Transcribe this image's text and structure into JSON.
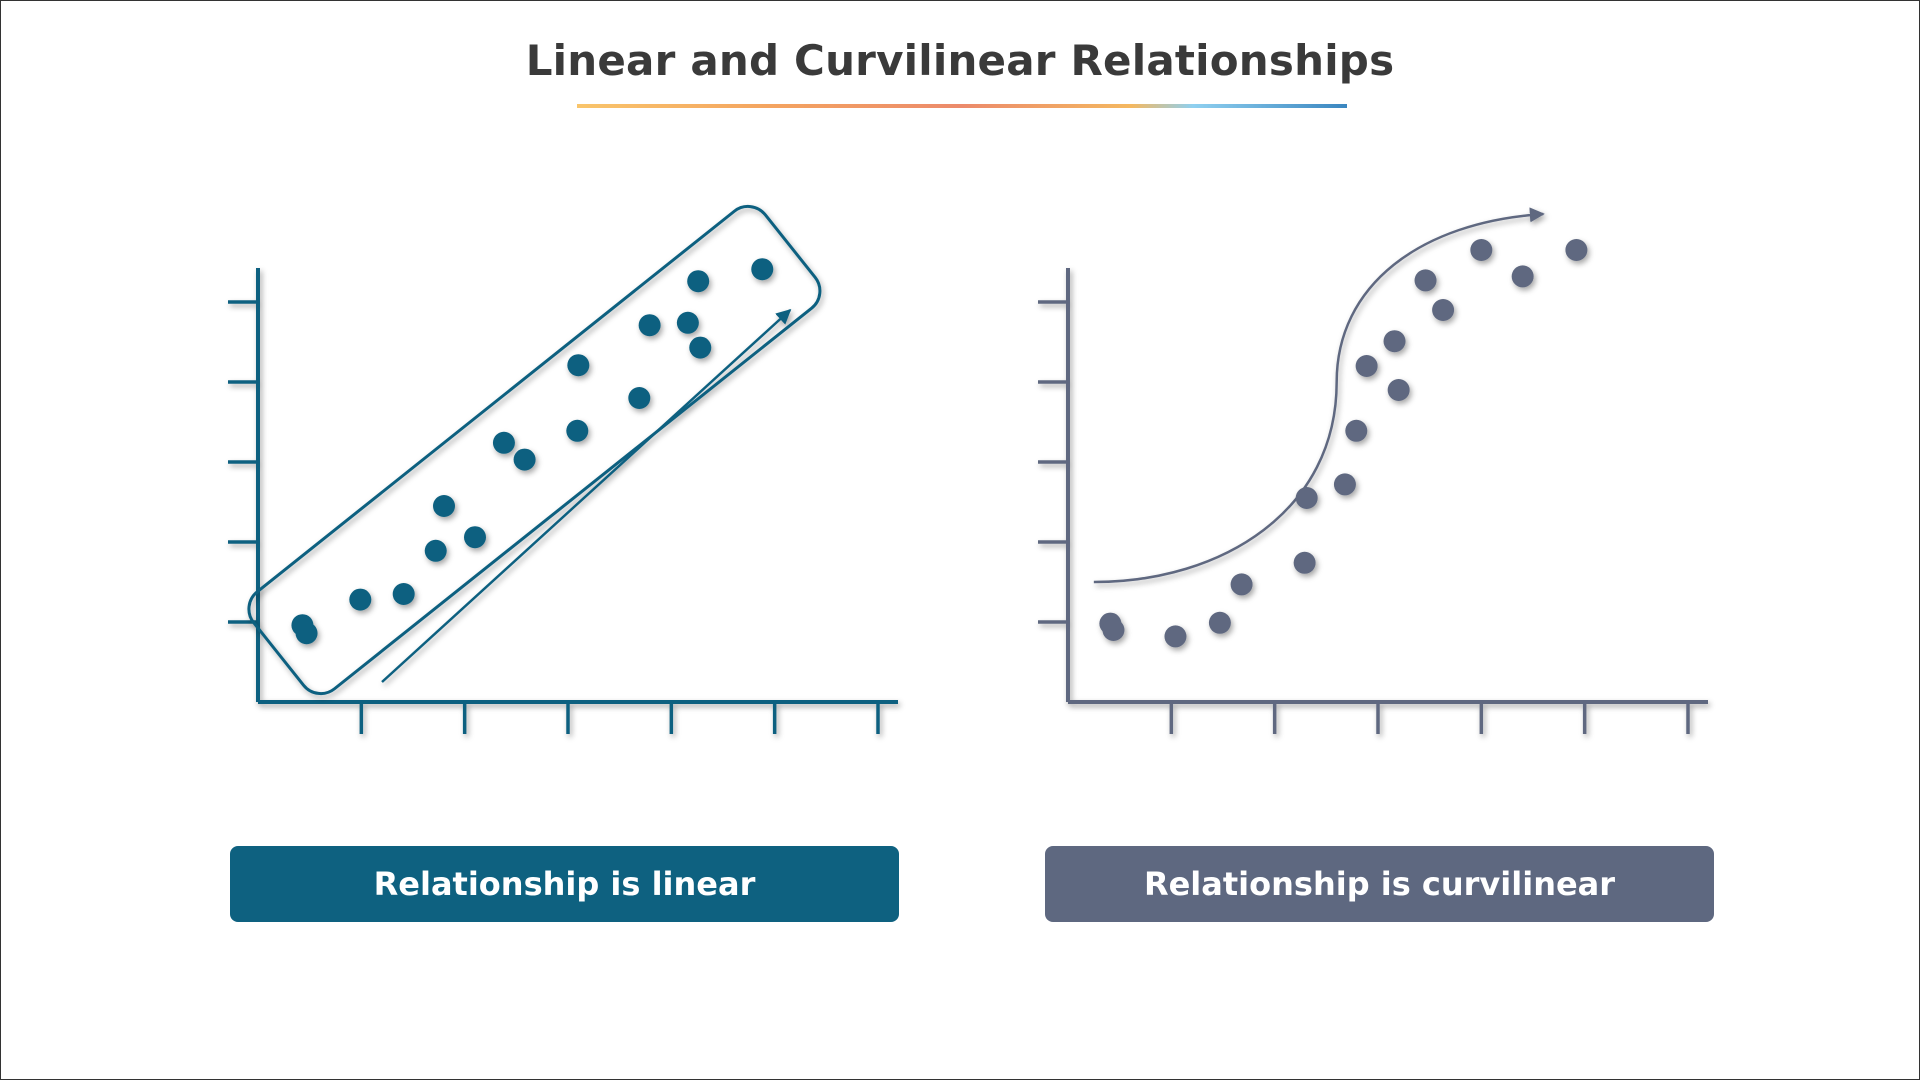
{
  "title": "Linear and Curvilinear Relationships",
  "colors": {
    "linear": "#0e6180",
    "curvilinear": "#5e6880",
    "title": "#3a3a3a",
    "underline": [
      "#f9c56b",
      "#f4a460",
      "#ec8a6b",
      "#f4b860",
      "#8fd0f0",
      "#3a86c0"
    ]
  },
  "chart_data": [
    {
      "type": "scatter",
      "title": "",
      "xlabel": "",
      "ylabel": "",
      "xlim": [
        0,
        6
      ],
      "ylim": [
        0,
        6
      ],
      "x_ticks": [
        1,
        2,
        3,
        4,
        5,
        6
      ],
      "y_ticks": [
        1,
        2,
        3,
        4,
        5
      ],
      "grid": false,
      "annotation": "trend enclosed in a band with an upward arrow",
      "points": [
        {
          "x": 0.43,
          "y": 0.96
        },
        {
          "x": 0.47,
          "y": 0.86
        },
        {
          "x": 0.99,
          "y": 1.28
        },
        {
          "x": 1.41,
          "y": 1.35
        },
        {
          "x": 1.72,
          "y": 1.89
        },
        {
          "x": 1.8,
          "y": 2.45
        },
        {
          "x": 2.1,
          "y": 2.06
        },
        {
          "x": 2.38,
          "y": 3.24
        },
        {
          "x": 2.58,
          "y": 3.03
        },
        {
          "x": 3.09,
          "y": 3.39
        },
        {
          "x": 3.1,
          "y": 4.21
        },
        {
          "x": 3.69,
          "y": 3.8
        },
        {
          "x": 3.79,
          "y": 4.71
        },
        {
          "x": 4.16,
          "y": 4.74
        },
        {
          "x": 4.26,
          "y": 5.26
        },
        {
          "x": 4.28,
          "y": 4.43
        },
        {
          "x": 4.88,
          "y": 5.41
        }
      ]
    },
    {
      "type": "scatter",
      "title": "",
      "xlabel": "",
      "ylabel": "",
      "xlim": [
        0,
        6
      ],
      "ylim": [
        0,
        6
      ],
      "x_ticks": [
        1,
        2,
        3,
        4,
        5,
        6
      ],
      "y_ticks": [
        1,
        2,
        3,
        4,
        5
      ],
      "grid": false,
      "annotation": "S-shaped curved arrow following the trend",
      "points": [
        {
          "x": 0.41,
          "y": 0.98
        },
        {
          "x": 0.44,
          "y": 0.9
        },
        {
          "x": 1.04,
          "y": 0.82
        },
        {
          "x": 1.47,
          "y": 0.99
        },
        {
          "x": 1.68,
          "y": 1.47
        },
        {
          "x": 2.29,
          "y": 1.74
        },
        {
          "x": 2.31,
          "y": 2.55
        },
        {
          "x": 2.68,
          "y": 2.72
        },
        {
          "x": 2.79,
          "y": 3.39
        },
        {
          "x": 2.89,
          "y": 4.2
        },
        {
          "x": 3.16,
          "y": 4.51
        },
        {
          "x": 3.2,
          "y": 3.9
        },
        {
          "x": 3.46,
          "y": 5.27
        },
        {
          "x": 3.63,
          "y": 4.9
        },
        {
          "x": 4.0,
          "y": 5.65
        },
        {
          "x": 4.4,
          "y": 5.32
        },
        {
          "x": 4.92,
          "y": 5.65
        }
      ]
    }
  ],
  "captions": {
    "linear": "Relationship is linear",
    "curvilinear": "Relationship is curvilinear"
  }
}
